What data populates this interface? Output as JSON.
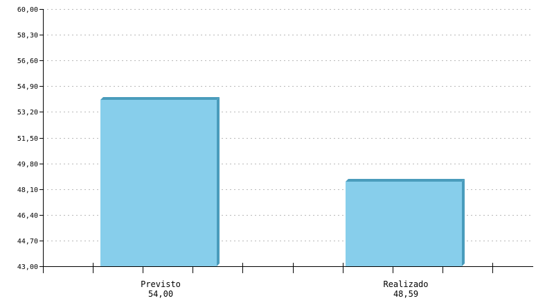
{
  "chart_data": {
    "type": "bar",
    "title": "",
    "xlabel": "",
    "ylabel": "",
    "categories": [
      "Previsto",
      "Realizado"
    ],
    "values": [
      54.0,
      48.59
    ],
    "value_labels": [
      "54,00",
      "48,59"
    ],
    "ylim": [
      43.0,
      60.0
    ],
    "yticks": [
      "43,00",
      "44,70",
      "46,40",
      "48,10",
      "49,80",
      "51,50",
      "53,20",
      "54,90",
      "56,60",
      "58,30",
      "60,00"
    ],
    "grid": true,
    "bar_color": "#87ceeb",
    "bar_side_color": "#4a9cbc"
  }
}
